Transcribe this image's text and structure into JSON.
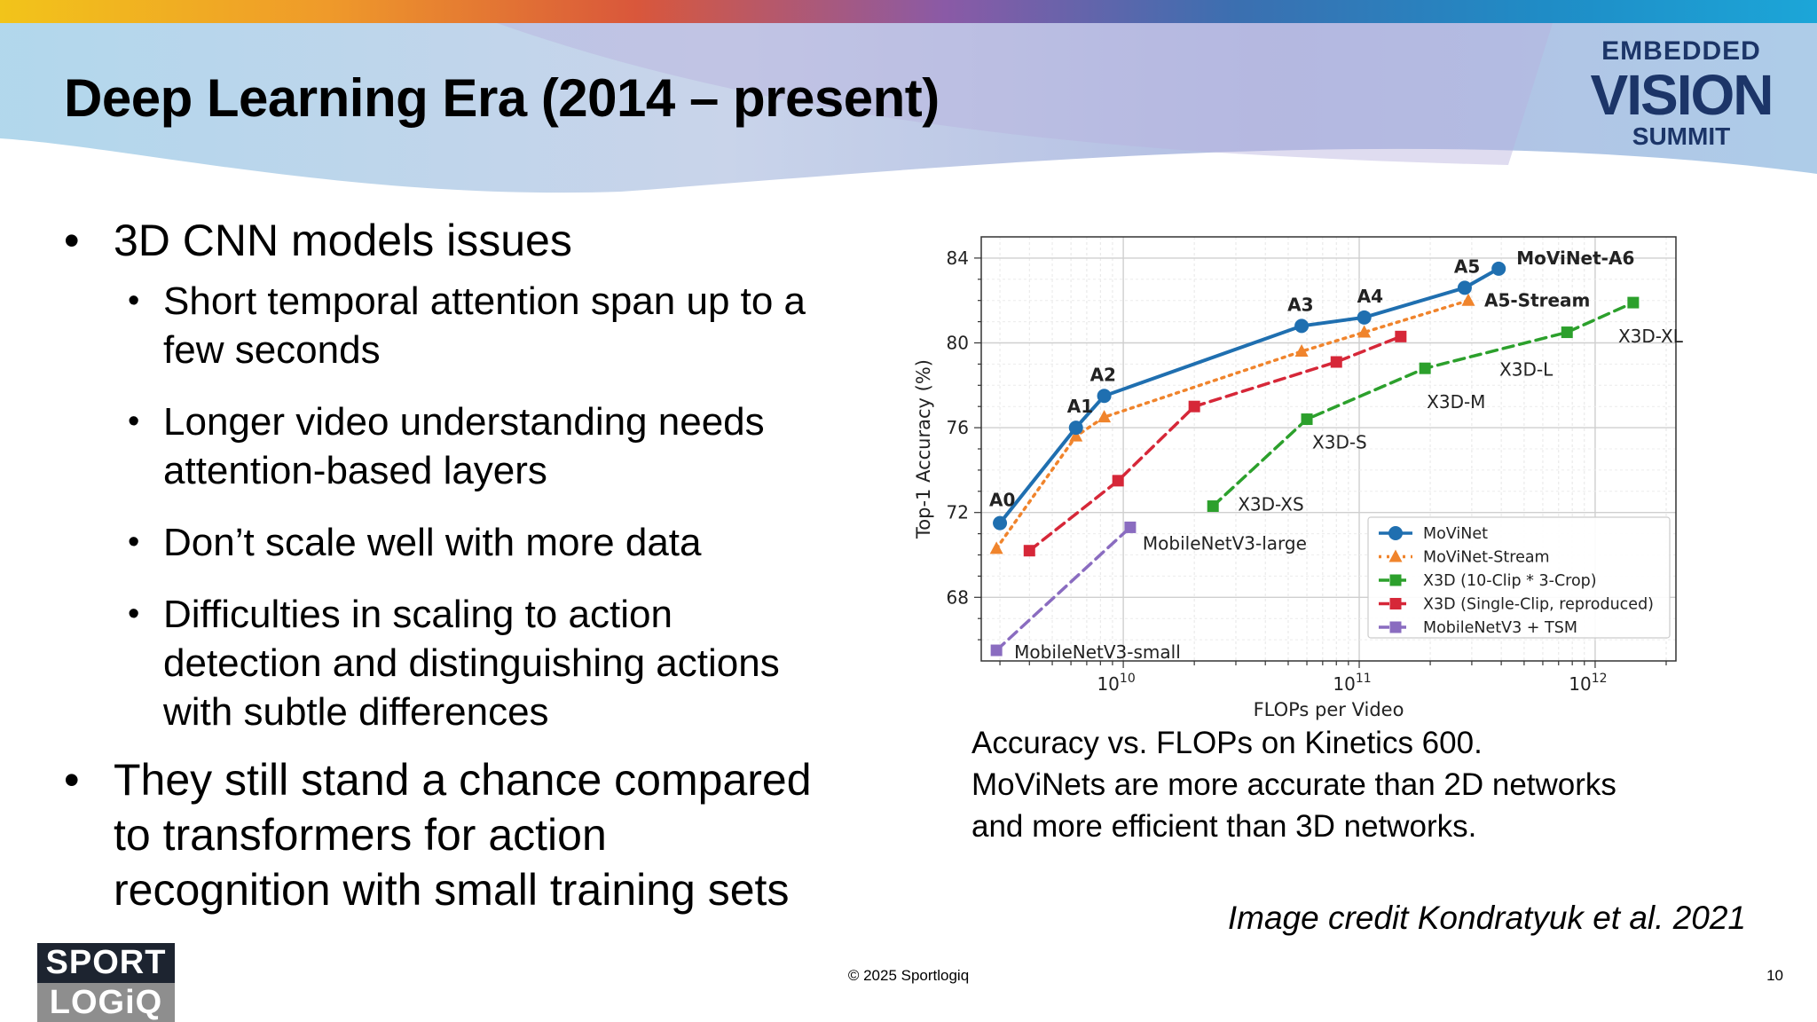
{
  "slide": {
    "title": "Deep Learning Era (2014 – present)",
    "logo": {
      "line1": "EMBEDDED",
      "line2": "VISION",
      "line3": "SUMMIT"
    },
    "bullets": [
      {
        "text": "3D CNN models issues",
        "level": 1
      },
      {
        "text": "Short temporal attention span up to a few seconds",
        "level": 2
      },
      {
        "text": "Longer video understanding needs attention-based layers",
        "level": 2
      },
      {
        "text": "Don’t scale well with more data",
        "level": 2
      },
      {
        "text": "Difficulties in scaling to action detection and distinguishing actions with subtle differences",
        "level": 2
      },
      {
        "text": "They still stand a chance compared to transformers for action recognition with small training sets",
        "level": 1
      }
    ],
    "bullet_lines": {
      "b2": [
        "Short temporal attention span up to a",
        "few seconds"
      ],
      "b3": [
        "Longer video understanding needs",
        "attention-based layers"
      ],
      "b5": [
        "Difficulties in scaling to action",
        "detection and distinguishing actions",
        "with subtle differences"
      ],
      "b6": [
        "They still stand a chance compared",
        "to transformers for action",
        "recognition with small training sets"
      ]
    },
    "caption_lines": [
      "Accuracy vs. FLOPs on Kinetics 600.",
      "MoViNets are more accurate than 2D networks",
      "and more efficient than 3D networks."
    ],
    "credit": "Image credit Kondratyuk et al. 2021",
    "copyright": "© 2025 Sportlogiq",
    "page_number": "10",
    "footer_logo": {
      "line1": "SPORT",
      "line2": "LOGiQ"
    }
  },
  "chart_data": {
    "type": "line",
    "xlabel": "FLOPs per Video",
    "ylabel": "Top-1 Accuracy (%)",
    "x_scale": "log",
    "xlim": [
      2500000000.0,
      2200000000000.0
    ],
    "ylim": [
      65,
      85
    ],
    "x_ticks": [
      {
        "value": 10000000000.0,
        "base": "10",
        "exp": "10"
      },
      {
        "value": 100000000000.0,
        "base": "10",
        "exp": "11"
      },
      {
        "value": 1000000000000.0,
        "base": "10",
        "exp": "12"
      }
    ],
    "y_ticks": [
      68,
      72,
      76,
      80,
      84
    ],
    "grid": true,
    "legend_position": "lower-right",
    "series": [
      {
        "name": "MoViNet",
        "color": "#1f6fb0",
        "marker": "circle",
        "linestyle": "solid",
        "points": [
          {
            "x": 3000000000.0,
            "y": 71.5,
            "label": "A0"
          },
          {
            "x": 6300000000.0,
            "y": 76.0,
            "label": "A1"
          },
          {
            "x": 8300000000.0,
            "y": 77.5,
            "label": "A2"
          },
          {
            "x": 57000000000.0,
            "y": 80.8,
            "label": "A3"
          },
          {
            "x": 105000000000.0,
            "y": 81.2,
            "label": "A4"
          },
          {
            "x": 280000000000.0,
            "y": 82.6,
            "label": "A5"
          },
          {
            "x": 390000000000.0,
            "y": 83.5,
            "label": "MoViNet-A6"
          }
        ]
      },
      {
        "name": "MoViNet-Stream",
        "color": "#f0842c",
        "marker": "triangle",
        "linestyle": "dotted",
        "points": [
          {
            "x": 2900000000.0,
            "y": 70.3
          },
          {
            "x": 6300000000.0,
            "y": 75.6
          },
          {
            "x": 8300000000.0,
            "y": 76.5
          },
          {
            "x": 57000000000.0,
            "y": 79.6
          },
          {
            "x": 105000000000.0,
            "y": 80.5
          },
          {
            "x": 290000000000.0,
            "y": 82.0,
            "label": "A5-Stream"
          }
        ]
      },
      {
        "name": "X3D (10-Clip * 3-Crop)",
        "color": "#2ca02c",
        "marker": "square",
        "linestyle": "dashed",
        "points": [
          {
            "x": 24000000000.0,
            "y": 72.3,
            "label": "X3D-XS"
          },
          {
            "x": 60000000000.0,
            "y": 76.4,
            "label": "X3D-S"
          },
          {
            "x": 190000000000.0,
            "y": 78.8,
            "label": "X3D-M"
          },
          {
            "x": 760000000000.0,
            "y": 80.5,
            "label": "X3D-L"
          },
          {
            "x": 1450000000000.0,
            "y": 81.9,
            "label": "X3D-XL"
          }
        ]
      },
      {
        "name": "X3D (Single-Clip, reproduced)",
        "color": "#d62738",
        "marker": "square",
        "linestyle": "dashed",
        "points": [
          {
            "x": 4000000000.0,
            "y": 70.2
          },
          {
            "x": 9500000000.0,
            "y": 73.5
          },
          {
            "x": 20000000000.0,
            "y": 77.0
          },
          {
            "x": 80000000000.0,
            "y": 79.1
          },
          {
            "x": 150000000000.0,
            "y": 80.3
          }
        ]
      },
      {
        "name": "MobileNetV3 + TSM",
        "color": "#8a6cc0",
        "marker": "square",
        "linestyle": "dashed",
        "points": [
          {
            "x": 2900000000.0,
            "y": 65.5,
            "label": "MobileNetV3-small"
          },
          {
            "x": 10700000000.0,
            "y": 71.3,
            "label": "MobileNetV3-large"
          }
        ]
      }
    ]
  }
}
